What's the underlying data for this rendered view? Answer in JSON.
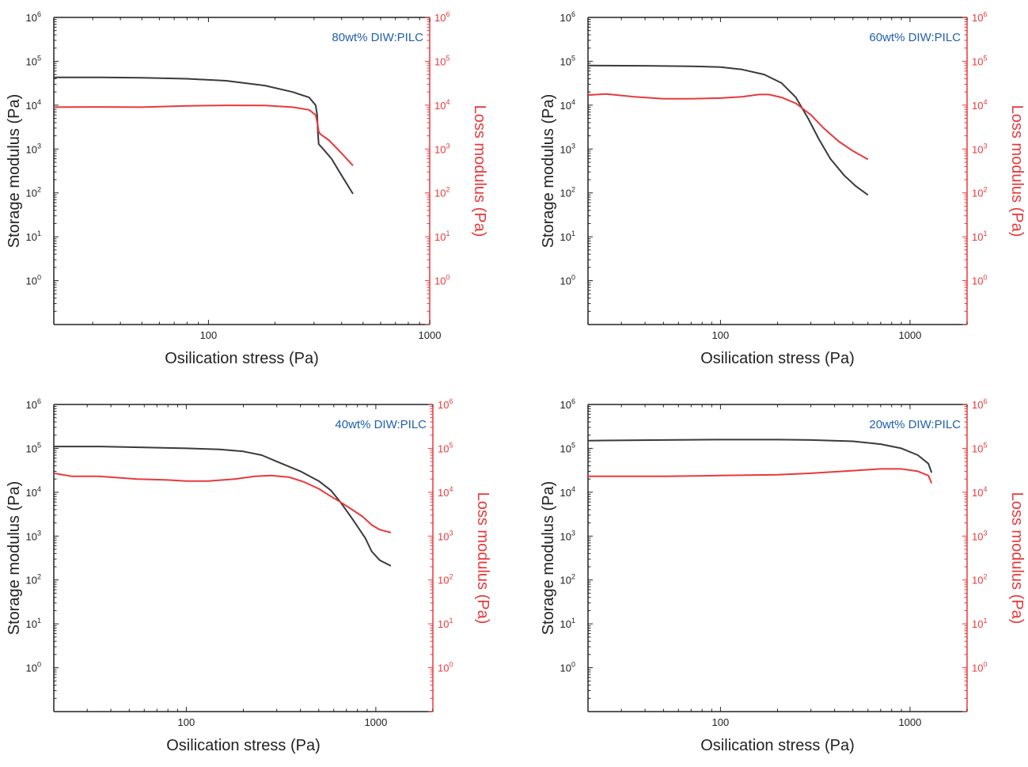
{
  "chart_data": [
    {
      "type": "line",
      "annotation": "80wt% DIW:PILC",
      "xlabel": "Osilication stress (Pa)",
      "ylabel_left": "Storage modulus (Pa)",
      "ylabel_right": "Loss modulus (Pa)",
      "xscale": "log",
      "yscale": "log",
      "xlim": [
        20,
        1000
      ],
      "ylim": [
        0.1,
        1000000
      ],
      "xticks": [
        100,
        1000
      ],
      "xtick_labels": [
        "100",
        "1000"
      ],
      "yticks": [
        1,
        10,
        100,
        1000,
        10000,
        100000,
        1000000
      ],
      "ytick_exponents": [
        "0",
        "1",
        "2",
        "3",
        "4",
        "5",
        "6"
      ],
      "colors": {
        "storage": "#3a3a3a",
        "loss": "#e8393b",
        "annotation": "#1f5fae"
      },
      "series": [
        {
          "key": "storage",
          "x": [
            20,
            30,
            50,
            80,
            120,
            180,
            240,
            285,
            305,
            310,
            312,
            315,
            330,
            360,
            400,
            450
          ],
          "y": [
            43000,
            43000,
            42000,
            40000,
            36000,
            28000,
            20000,
            15000,
            10000,
            6000,
            2500,
            1300,
            1000,
            600,
            250,
            95
          ]
        },
        {
          "key": "loss",
          "x": [
            20,
            30,
            50,
            80,
            120,
            180,
            240,
            285,
            305,
            312,
            315,
            320,
            350,
            400,
            450
          ],
          "y": [
            9000,
            9100,
            9000,
            9600,
            9900,
            9800,
            9000,
            7800,
            6000,
            3500,
            2500,
            2200,
            1600,
            800,
            420
          ]
        }
      ]
    },
    {
      "type": "line",
      "annotation": "60wt% DIW:PILC",
      "xlabel": "Osilication stress (Pa)",
      "ylabel_left": "Storage modulus (Pa)",
      "ylabel_right": "Loss modulus (Pa)",
      "xscale": "log",
      "yscale": "log",
      "xlim": [
        20,
        2000
      ],
      "ylim": [
        0.1,
        1000000
      ],
      "xticks": [
        100,
        1000
      ],
      "xtick_labels": [
        "100",
        "1000"
      ],
      "yticks": [
        1,
        10,
        100,
        1000,
        10000,
        100000,
        1000000
      ],
      "ytick_exponents": [
        "0",
        "1",
        "2",
        "3",
        "4",
        "5",
        "6"
      ],
      "colors": {
        "storage": "#3a3a3a",
        "loss": "#e8393b",
        "annotation": "#1f5fae"
      },
      "series": [
        {
          "key": "storage",
          "x": [
            20,
            40,
            70,
            100,
            130,
            170,
            210,
            250,
            290,
            330,
            380,
            450,
            520,
            600
          ],
          "y": [
            80000,
            79000,
            77000,
            74000,
            65000,
            50000,
            32000,
            15000,
            5000,
            1700,
            600,
            250,
            140,
            90
          ]
        },
        {
          "key": "loss",
          "x": [
            20,
            25,
            35,
            50,
            70,
            100,
            130,
            160,
            180,
            210,
            250,
            300,
            350,
            420,
            500,
            600
          ],
          "y": [
            17000,
            18000,
            15500,
            14000,
            14000,
            14500,
            15500,
            17500,
            17500,
            15000,
            11000,
            6000,
            3000,
            1500,
            900,
            580
          ]
        }
      ]
    },
    {
      "type": "line",
      "annotation": "40wt% DIW:PILC",
      "xlabel": "Osilication stress (Pa)",
      "ylabel_left": "Storage modulus (Pa)",
      "ylabel_right": "Loss modulus (Pa)",
      "xscale": "log",
      "yscale": "log",
      "xlim": [
        20,
        2000
      ],
      "ylim": [
        0.1,
        1000000
      ],
      "xticks": [
        100,
        1000
      ],
      "xtick_labels": [
        "100",
        "1000"
      ],
      "yticks": [
        1,
        10,
        100,
        1000,
        10000,
        100000,
        1000000
      ],
      "ytick_exponents": [
        "0",
        "1",
        "2",
        "3",
        "4",
        "5",
        "6"
      ],
      "colors": {
        "storage": "#3a3a3a",
        "loss": "#e8393b",
        "annotation": "#1f5fae"
      },
      "series": [
        {
          "key": "storage",
          "x": [
            20,
            35,
            60,
            100,
            150,
            200,
            250,
            300,
            400,
            500,
            580,
            650,
            750,
            880,
            950,
            1050,
            1200
          ],
          "y": [
            110000,
            110000,
            105000,
            100000,
            95000,
            85000,
            70000,
            50000,
            30000,
            18000,
            11000,
            6000,
            2500,
            900,
            450,
            280,
            210
          ]
        },
        {
          "key": "loss",
          "x": [
            20,
            25,
            35,
            55,
            80,
            100,
            130,
            180,
            230,
            280,
            350,
            420,
            500,
            580,
            650,
            750,
            850,
            950,
            1050,
            1200
          ],
          "y": [
            27000,
            23000,
            23000,
            20000,
            19000,
            18000,
            18000,
            20000,
            23000,
            24000,
            22000,
            17000,
            12000,
            8000,
            6000,
            4000,
            2800,
            1800,
            1400,
            1200
          ]
        }
      ]
    },
    {
      "type": "line",
      "annotation": "20wt% DIW:PILC",
      "xlabel": "Osilication stress (Pa)",
      "ylabel_left": "Storage modulus (Pa)",
      "ylabel_right": "Loss modulus (Pa)",
      "xscale": "log",
      "yscale": "log",
      "xlim": [
        20,
        2000
      ],
      "ylim": [
        0.1,
        1000000
      ],
      "xticks": [
        100,
        1000
      ],
      "xtick_labels": [
        "100",
        "1000"
      ],
      "yticks": [
        1,
        10,
        100,
        1000,
        10000,
        100000,
        1000000
      ],
      "ytick_exponents": [
        "0",
        "1",
        "2",
        "3",
        "4",
        "5",
        "6"
      ],
      "colors": {
        "storage": "#3a3a3a",
        "loss": "#e8393b",
        "annotation": "#1f5fae"
      },
      "series": [
        {
          "key": "storage",
          "x": [
            20,
            50,
            100,
            200,
            300,
            500,
            700,
            900,
            1100,
            1250,
            1300
          ],
          "y": [
            150000,
            155000,
            158000,
            158000,
            155000,
            145000,
            125000,
            100000,
            70000,
            45000,
            28000
          ]
        },
        {
          "key": "loss",
          "x": [
            20,
            50,
            100,
            200,
            300,
            500,
            700,
            900,
            1100,
            1250,
            1300
          ],
          "y": [
            23000,
            23000,
            24000,
            25000,
            27000,
            31000,
            34000,
            34000,
            30000,
            24000,
            16000
          ]
        }
      ]
    }
  ]
}
